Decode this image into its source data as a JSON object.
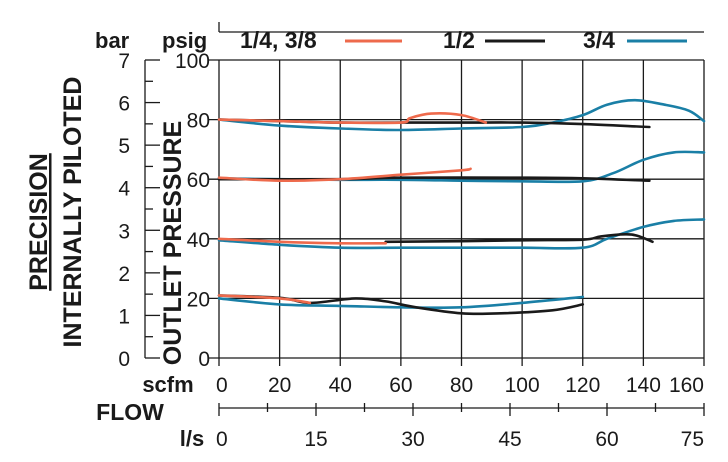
{
  "chart_data": {
    "type": "line",
    "category_label": "PRECISION",
    "subtitle": "INTERNALLY PILOTED",
    "ylabel": "OUTLET PRESSURE",
    "units": {
      "bar": "bar",
      "psig": "psig",
      "scfm": "scfm",
      "ls": "l/s"
    },
    "xlabel": "FLOW",
    "xlim": [
      0,
      160
    ],
    "ylim": [
      0,
      100
    ],
    "x_ticks_scfm": [
      "0",
      "20",
      "40",
      "60",
      "80",
      "100",
      "120",
      "140",
      "160"
    ],
    "x_ticks_ls": [
      "0",
      "15",
      "30",
      "45",
      "60",
      "75"
    ],
    "y_ticks_psig": [
      "0",
      "20",
      "40",
      "60",
      "80",
      "100"
    ],
    "y_ticks_bar": [
      "0",
      "1",
      "2",
      "3",
      "4",
      "5",
      "6",
      "7"
    ],
    "legend": [
      {
        "label": "1/4, 3/8",
        "color": "#ee6a4c"
      },
      {
        "label": "1/2",
        "color": "#1a1a1a"
      },
      {
        "label": "3/4",
        "color": "#1a7fa6"
      }
    ],
    "series": [
      {
        "name": "1/4, 3/8",
        "color": "#ee6a4c",
        "curves": [
          [
            [
              0,
              80
            ],
            [
              20,
              79.5
            ],
            [
              40,
              79
            ],
            [
              60,
              79
            ],
            [
              63,
              80.5
            ],
            [
              70,
              82
            ],
            [
              80,
              81.5
            ],
            [
              88,
              79
            ]
          ],
          [
            [
              0,
              60.5
            ],
            [
              20,
              59.5
            ],
            [
              40,
              60
            ],
            [
              60,
              61.5
            ],
            [
              80,
              63
            ],
            [
              83,
              63.5
            ]
          ],
          [
            [
              0,
              40
            ],
            [
              20,
              39
            ],
            [
              40,
              38.5
            ],
            [
              55,
              38.5
            ]
          ],
          [
            [
              0,
              21
            ],
            [
              20,
              20
            ],
            [
              30,
              18.5
            ]
          ]
        ]
      },
      {
        "name": "1/2",
        "color": "#1a1a1a",
        "curves": [
          [
            [
              0,
              80
            ],
            [
              20,
              79.5
            ],
            [
              40,
              79
            ],
            [
              60,
              79
            ],
            [
              80,
              79
            ],
            [
              100,
              79
            ],
            [
              120,
              78.5
            ],
            [
              142,
              77.5
            ]
          ],
          [
            [
              0,
              60
            ],
            [
              40,
              60
            ],
            [
              60,
              60.5
            ],
            [
              100,
              60.5
            ],
            [
              120,
              60.3
            ],
            [
              142,
              59.5
            ]
          ],
          [
            [
              55,
              39
            ],
            [
              80,
              39.2
            ],
            [
              100,
              39.5
            ],
            [
              120,
              39.7
            ],
            [
              126,
              40.8
            ],
            [
              134,
              41.5
            ],
            [
              138,
              41
            ],
            [
              143,
              39
            ]
          ],
          [
            [
              0,
              21
            ],
            [
              20,
              20.2
            ],
            [
              30,
              18.5
            ],
            [
              45,
              20
            ],
            [
              55,
              19
            ],
            [
              65,
              17
            ],
            [
              80,
              15
            ],
            [
              93,
              15
            ],
            [
              110,
              16
            ],
            [
              120,
              18
            ]
          ]
        ]
      },
      {
        "name": "3/4",
        "color": "#1a7fa6",
        "curves": [
          [
            [
              0,
              80
            ],
            [
              20,
              78
            ],
            [
              40,
              77
            ],
            [
              60,
              76.5
            ],
            [
              80,
              77
            ],
            [
              100,
              77.5
            ],
            [
              110,
              79
            ],
            [
              120,
              81.5
            ],
            [
              128,
              85
            ],
            [
              137,
              86.5
            ],
            [
              147,
              85
            ],
            [
              155,
              83
            ],
            [
              160,
              79.5
            ]
          ],
          [
            [
              0,
              60.3
            ],
            [
              20,
              60
            ],
            [
              40,
              59.8
            ],
            [
              60,
              59.8
            ],
            [
              80,
              59.5
            ],
            [
              100,
              59.3
            ],
            [
              120,
              59.3
            ],
            [
              130,
              62
            ],
            [
              140,
              66.5
            ],
            [
              150,
              69
            ],
            [
              160,
              69
            ]
          ],
          [
            [
              0,
              39.5
            ],
            [
              20,
              38
            ],
            [
              40,
              37
            ],
            [
              60,
              37
            ],
            [
              80,
              37
            ],
            [
              100,
              37
            ],
            [
              120,
              37
            ],
            [
              128,
              40
            ],
            [
              140,
              44
            ],
            [
              150,
              46
            ],
            [
              160,
              46.5
            ]
          ],
          [
            [
              0,
              20
            ],
            [
              20,
              18
            ],
            [
              40,
              17.5
            ],
            [
              60,
              17
            ],
            [
              80,
              17
            ],
            [
              100,
              18.5
            ],
            [
              120,
              20.5
            ]
          ]
        ]
      }
    ]
  }
}
